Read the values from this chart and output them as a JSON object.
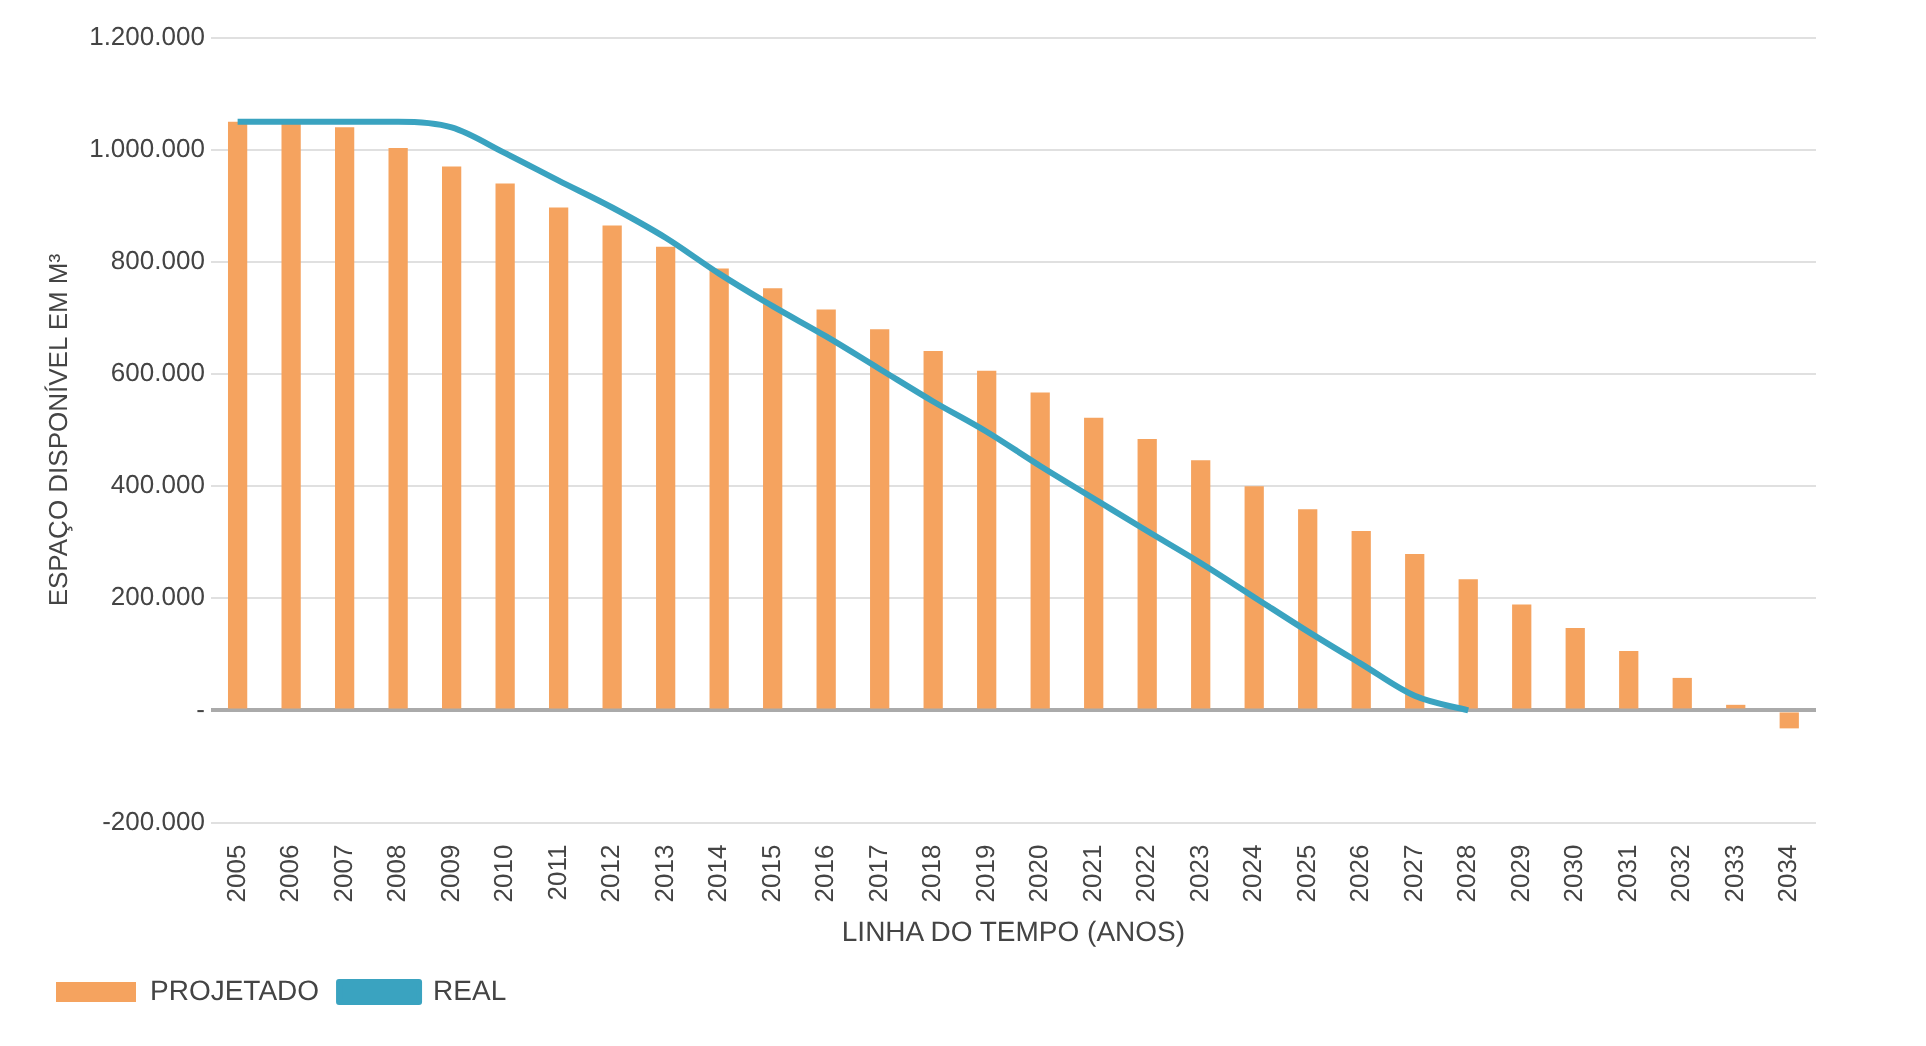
{
  "chart_data": {
    "type": "bar",
    "xlabel": "LINHA DO TEMPO (ANOS)",
    "ylabel": "ESPAÇO DISPONÍVEL EM M³",
    "categories": [
      "2005",
      "2006",
      "2007",
      "2008",
      "2009",
      "2010",
      "2011",
      "2012",
      "2013",
      "2014",
      "2015",
      "2016",
      "2017",
      "2018",
      "2019",
      "2020",
      "2021",
      "2022",
      "2023",
      "2024",
      "2025",
      "2026",
      "2027",
      "2028",
      "2029",
      "2030",
      "2031",
      "2032",
      "2033",
      "2034"
    ],
    "series": [
      {
        "name": "PROJETADO",
        "color": "#f5a35f",
        "values": [
          1050000,
          1050000,
          1040000,
          1003000,
          970000,
          940000,
          897000,
          865000,
          827000,
          788000,
          753000,
          715000,
          680000,
          641000,
          606000,
          567000,
          522000,
          484000,
          446000,
          400000,
          359000,
          320000,
          279000,
          234000,
          189000,
          147000,
          106000,
          58000,
          10000,
          -32000
        ]
      },
      {
        "name": "REAL",
        "type": "line",
        "color": "#3aa3c0",
        "values": [
          1050000,
          1050000,
          1050000,
          1050000,
          1040000,
          994000,
          945000,
          897000,
          843000,
          779000,
          721000,
          667000,
          609000,
          551000,
          497000,
          436000,
          378000,
          320000,
          263000,
          202000,
          141000,
          83000,
          26000,
          0,
          null,
          null,
          null,
          null,
          null,
          null
        ]
      }
    ],
    "ylim": [
      -200000,
      1200000
    ],
    "yticks": [
      {
        "value": -200000,
        "label": "-200.000"
      },
      {
        "value": 0,
        "label": "-"
      },
      {
        "value": 200000,
        "label": "200.000"
      },
      {
        "value": 400000,
        "label": "400.000"
      },
      {
        "value": 600000,
        "label": "600.000"
      },
      {
        "value": 800000,
        "label": "800.000"
      },
      {
        "value": 1000000,
        "label": "1.000.000"
      },
      {
        "value": 1200000,
        "label": "1.200.000"
      }
    ],
    "grid": "y",
    "legend": "bottom left"
  }
}
